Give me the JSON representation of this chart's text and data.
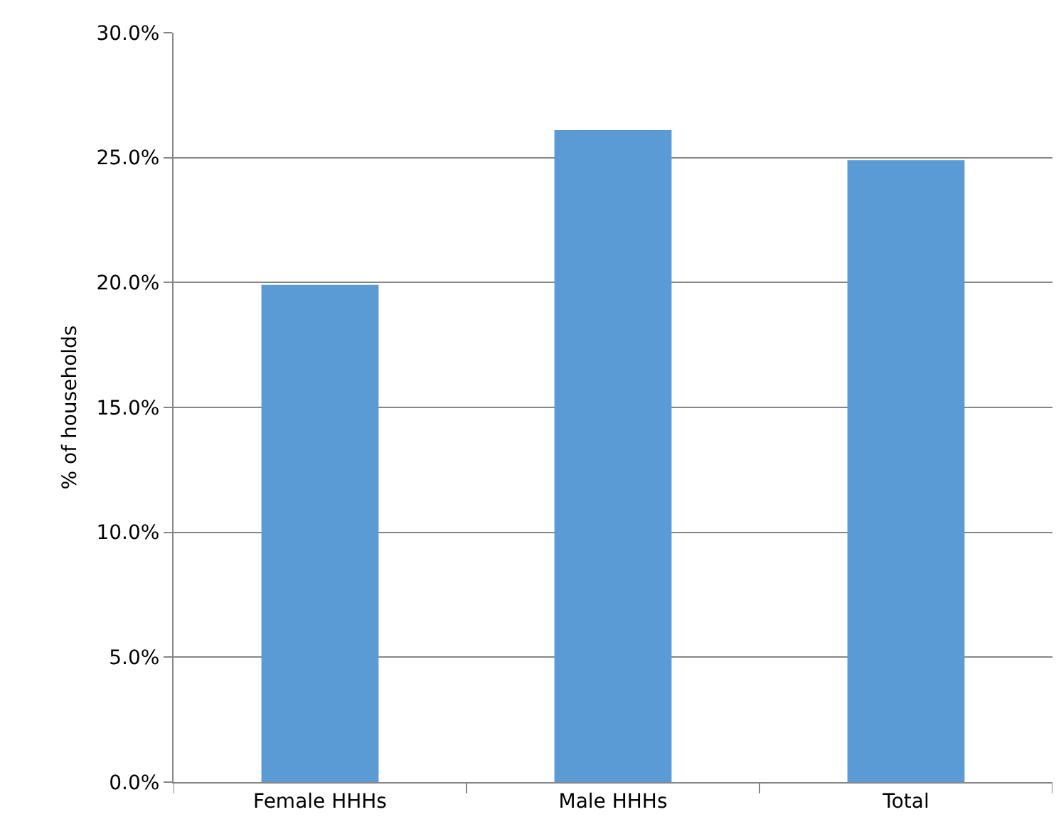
{
  "chart_data": {
    "type": "bar",
    "ylabel": "% of households",
    "categories": [
      "Female HHHs",
      "Male HHHs",
      "Total"
    ],
    "values": [
      19.9,
      26.1,
      24.9
    ],
    "color": "#5b9bd5",
    "ylim": [
      0,
      30
    ],
    "yticks": [
      {
        "value": 0,
        "label": "0.0%"
      },
      {
        "value": 5,
        "label": "5.0%"
      },
      {
        "value": 10,
        "label": "10.0%"
      },
      {
        "value": 15,
        "label": "15.0%"
      },
      {
        "value": 20,
        "label": "20.0%"
      },
      {
        "value": 25,
        "label": "25.0%"
      },
      {
        "value": 30,
        "label": "30.0%"
      }
    ],
    "grid": "y"
  }
}
